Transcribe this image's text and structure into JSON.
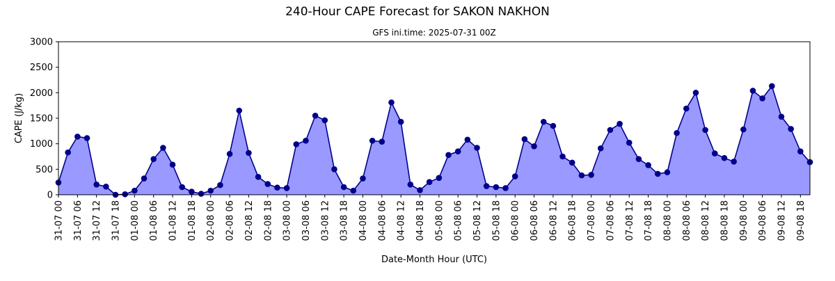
{
  "chart_data": {
    "type": "area",
    "title": "240-Hour CAPE Forecast for SAKON NAKHON",
    "subtitle": "GFS ini.time: 2025-07-31 00Z",
    "xlabel": "Date-Month Hour (UTC)",
    "ylabel": "CAPE (J/kg)",
    "ylim": [
      0,
      3000
    ],
    "yticks": [
      0,
      500,
      1000,
      1500,
      2000,
      2500,
      3000
    ],
    "xticks": [
      "31-07 00",
      "31-07 06",
      "31-07 12",
      "31-07 18",
      "01-08 00",
      "01-08 06",
      "01-08 12",
      "01-08 18",
      "02-08 00",
      "02-08 06",
      "02-08 12",
      "02-08 18",
      "03-08 00",
      "03-08 06",
      "03-08 12",
      "03-08 18",
      "04-08 00",
      "04-08 06",
      "04-08 12",
      "04-08 18",
      "05-08 00",
      "05-08 06",
      "05-08 12",
      "05-08 18",
      "06-08 00",
      "06-08 06",
      "06-08 12",
      "06-08 18",
      "07-08 00",
      "07-08 06",
      "07-08 12",
      "07-08 18",
      "08-08 00",
      "08-08 06",
      "08-08 12",
      "08-08 18",
      "09-08 00",
      "09-08 06",
      "09-08 12",
      "09-08 18"
    ],
    "x_step_hours": 3,
    "xlim_hours": [
      0,
      237
    ],
    "grid": false,
    "colors": {
      "line": "#00008b",
      "fill": "#9999ff",
      "marker": "#00008b"
    },
    "values": [
      240,
      830,
      1140,
      1110,
      200,
      160,
      0,
      10,
      80,
      320,
      700,
      920,
      590,
      150,
      60,
      20,
      80,
      190,
      800,
      1650,
      820,
      350,
      210,
      140,
      130,
      990,
      1060,
      1550,
      1460,
      500,
      150,
      80,
      320,
      1060,
      1040,
      1810,
      1430,
      200,
      90,
      250,
      330,
      780,
      850,
      1080,
      920,
      170,
      150,
      130,
      360,
      1090,
      950,
      1430,
      1350,
      750,
      630,
      380,
      390,
      910,
      1270,
      1390,
      1020,
      700,
      580,
      410,
      440,
      1210,
      1690,
      2000,
      1270,
      810,
      720,
      650,
      1280,
      2040,
      1890,
      2130,
      1530,
      1290,
      850,
      640
    ]
  }
}
